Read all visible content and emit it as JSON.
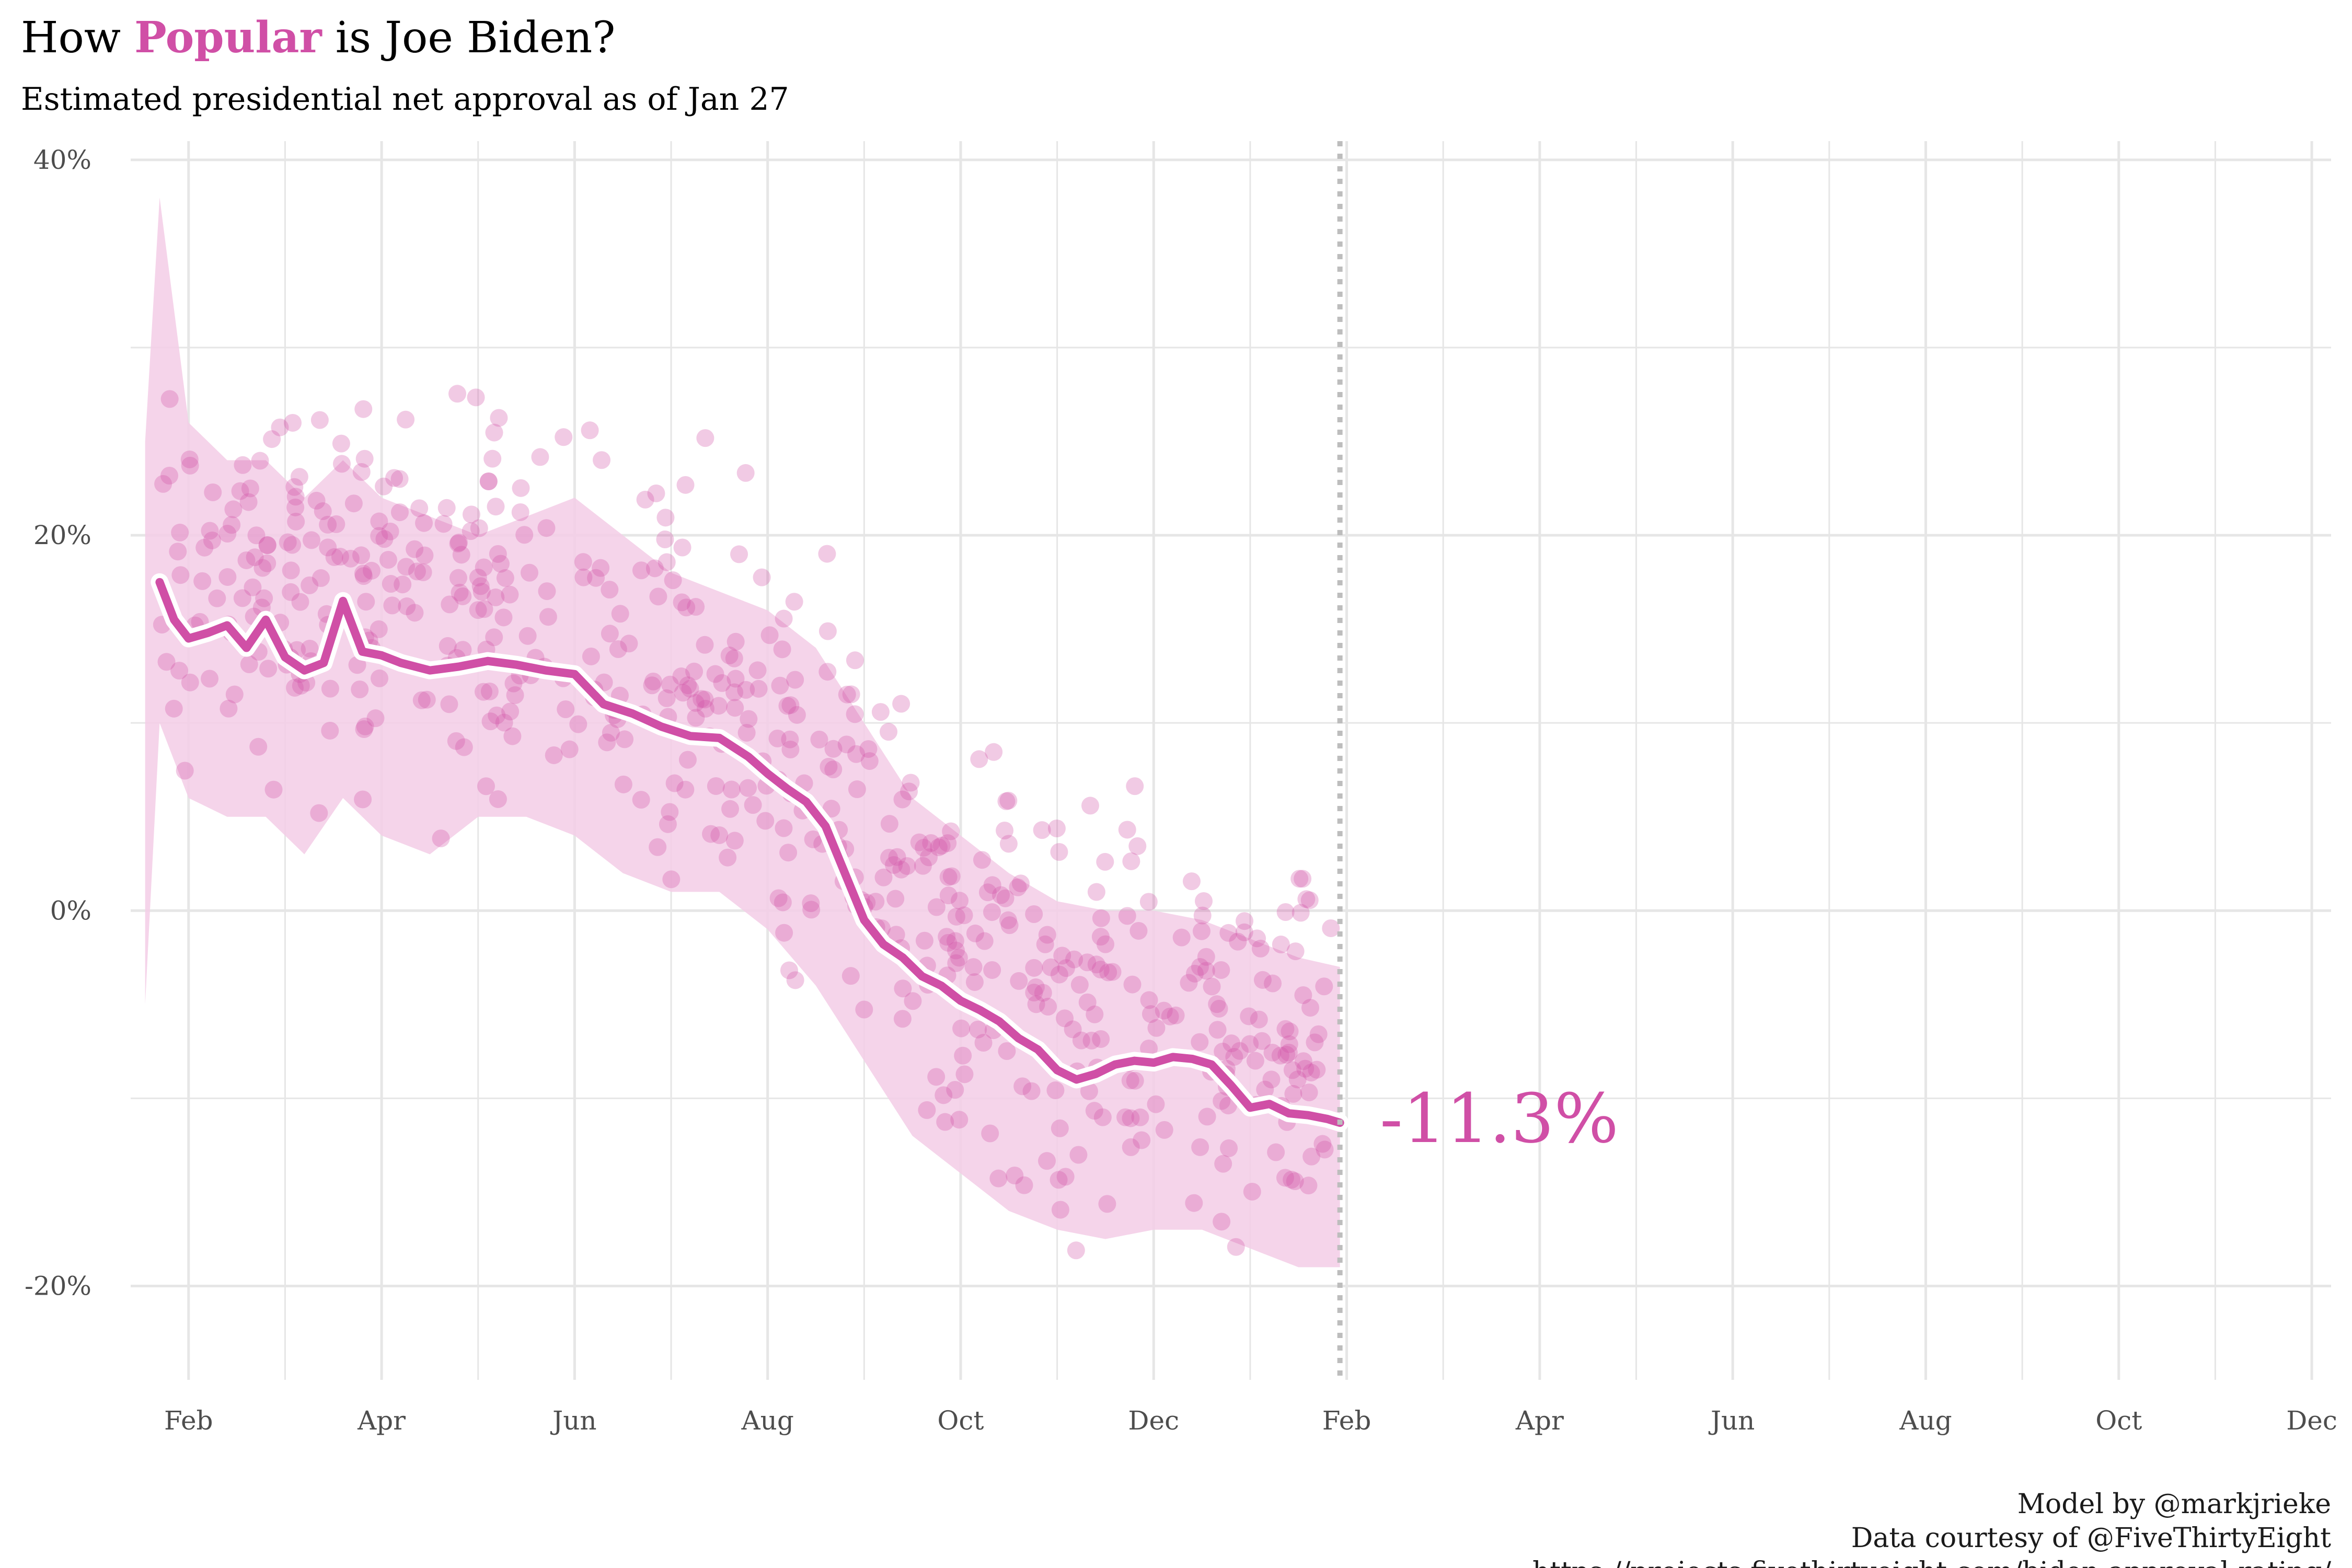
{
  "title": {
    "prefix": "How ",
    "highlight": "Popular",
    "suffix": " is Joe Biden?"
  },
  "subtitle": "Estimated presidential net approval as of Jan 27",
  "caption": [
    "Model by @markjrieke",
    "Data courtesy of @FiveThirtyEight",
    "https://projects.fivethirtyeight.com/biden-approval-rating/"
  ],
  "colors": {
    "accent": "#d04fa6",
    "band": "#f3cde6",
    "grid": "#e6e6e6",
    "vline": "#bdbdbd"
  },
  "chart_data": {
    "type": "line",
    "title": "How Popular is Joe Biden?",
    "subtitle": "Estimated presidential net approval as of Jan 27",
    "xlabel": "",
    "ylabel": "",
    "x_unit": "months since Jan 2021",
    "xlim": [
      0.4,
      23.2
    ],
    "ylim": [
      -25,
      41
    ],
    "y_ticks": [
      -20,
      0,
      20,
      40
    ],
    "y_tick_labels": [
      "-20%",
      "0%",
      "20%",
      "40%"
    ],
    "x_ticks": [
      1,
      3,
      5,
      7,
      9,
      11,
      13,
      15,
      17,
      19,
      21,
      23
    ],
    "x_tick_labels": [
      "Feb",
      "Apr",
      "Jun",
      "Aug",
      "Oct",
      "Dec",
      "Feb",
      "Apr",
      "Jun",
      "Aug",
      "Oct",
      "Dec"
    ],
    "grid": true,
    "today_marker_x": 12.93,
    "end_label": "-11.3%",
    "series": [
      {
        "type": "line",
        "x": [
          0.7,
          0.85,
          1.0,
          1.2,
          1.4,
          1.6,
          1.8,
          2.0,
          2.2,
          2.4,
          2.6,
          2.8,
          3.0,
          3.2,
          3.5,
          3.8,
          4.1,
          4.4,
          4.7,
          5.0,
          5.3,
          5.6,
          5.9,
          6.2,
          6.5,
          6.8,
          7.0,
          7.2,
          7.4,
          7.6,
          7.8,
          8.0,
          8.2,
          8.4,
          8.6,
          8.8,
          9.0,
          9.2,
          9.4,
          9.6,
          9.8,
          10.0,
          10.2,
          10.4,
          10.6,
          10.8,
          11.0,
          11.2,
          11.4,
          11.6,
          11.8,
          12.0,
          12.2,
          12.4,
          12.6,
          12.8,
          12.93
        ],
        "y": [
          17.5,
          15.5,
          14.5,
          14.8,
          15.2,
          14.0,
          15.5,
          13.5,
          12.8,
          13.2,
          16.5,
          13.8,
          13.6,
          13.2,
          12.8,
          13.0,
          13.3,
          13.1,
          12.8,
          12.6,
          11.0,
          10.5,
          9.8,
          9.3,
          9.2,
          8.2,
          7.3,
          6.5,
          5.8,
          4.5,
          2.0,
          -0.5,
          -1.8,
          -2.5,
          -3.5,
          -4.0,
          -4.8,
          -5.3,
          -5.9,
          -6.8,
          -7.4,
          -8.5,
          -9.0,
          -8.7,
          -8.2,
          -8.0,
          -8.1,
          -7.8,
          -7.9,
          -8.2,
          -9.3,
          -10.5,
          -10.3,
          -10.8,
          -10.9,
          -11.1,
          -11.3
        ]
      },
      {
        "type": "band",
        "x": [
          0.55,
          0.7,
          1.0,
          1.4,
          1.8,
          2.2,
          2.6,
          3.0,
          3.5,
          4.0,
          4.5,
          5.0,
          5.5,
          6.0,
          6.5,
          7.0,
          7.5,
          8.0,
          8.5,
          9.0,
          9.5,
          10.0,
          10.5,
          11.0,
          11.5,
          12.0,
          12.5,
          12.93
        ],
        "upper": [
          25,
          38,
          26,
          24,
          24,
          22,
          24,
          22,
          21,
          20,
          21,
          22,
          20,
          18,
          17,
          16,
          14,
          10,
          6,
          4,
          2,
          0.5,
          0,
          0,
          -0.5,
          -1.5,
          -2.5,
          -3
        ],
        "lower": [
          -5,
          10,
          6,
          5,
          5,
          3,
          6,
          4,
          3,
          5,
          5,
          4,
          2,
          1,
          1,
          -1,
          -4,
          -8,
          -12,
          -14,
          -16,
          -17,
          -17.5,
          -17,
          -17,
          -18,
          -19,
          -19
        ]
      }
    ]
  }
}
